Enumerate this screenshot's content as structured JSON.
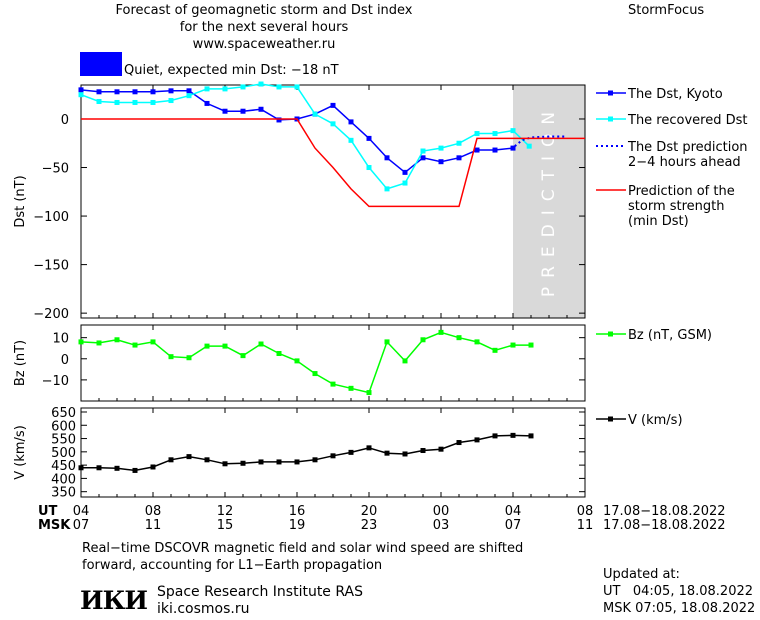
{
  "header": {
    "title_line1": "Forecast of geomagnetic storm and Dst index",
    "title_line2": "for the next several hours",
    "website": "www.spaceweather.ru",
    "brand": "StormFocus",
    "status": "Quiet, expected min Dst: −18 nT",
    "status_color": "#0000ff"
  },
  "prediction_band_text": "PREDICTION",
  "time_axis": {
    "ut_label": "UT",
    "msk_label": "MSK",
    "ut_ticks": [
      "04",
      "08",
      "12",
      "16",
      "20",
      "00",
      "04",
      "08"
    ],
    "msk_ticks": [
      "07",
      "11",
      "15",
      "19",
      "23",
      "03",
      "07",
      "11"
    ],
    "ut_range": "17.08−18.08.2022",
    "msk_range": "17.08−18.08.2022"
  },
  "footer": {
    "note_line1": "Real−time DSCOVR magnetic field and solar wind speed are shifted",
    "note_line2": "forward, accounting for L1−Earth propagation",
    "org_logo_text": "ИКИ",
    "org_name": "Space Research Institute RAS",
    "org_site": "iki.cosmos.ru",
    "updated_label": "Updated at:",
    "updated_ut": "UT   04:05, 18.08.2022",
    "updated_msk": "MSK 07:05, 18.08.2022"
  },
  "chart_data": [
    {
      "type": "line",
      "ylabel": "Dst (nT)",
      "ylim": [
        -205,
        35
      ],
      "xlim": [
        4,
        32
      ],
      "yticks": [
        0,
        -50,
        -100,
        -150,
        -200
      ],
      "prediction_region": [
        28,
        32
      ],
      "legend_placement": "right",
      "series": [
        {
          "name": "The Dst, Kyoto",
          "color": "#0000ff",
          "marker": "square",
          "style": "solid",
          "x": [
            4,
            5,
            6,
            7,
            8,
            9,
            10,
            11,
            12,
            13,
            14,
            15,
            16,
            17,
            18,
            19,
            20,
            21,
            22,
            23,
            24,
            25,
            26,
            27,
            28
          ],
          "y": [
            30,
            28,
            28,
            28,
            28,
            29,
            29,
            16,
            8,
            8,
            10,
            -1,
            0,
            5,
            14,
            -3,
            -20,
            -40,
            -55,
            -40,
            -44,
            -40,
            -32,
            -32,
            -30
          ]
        },
        {
          "name": "The recovered Dst",
          "color": "#00ffff",
          "marker": "square",
          "style": "solid",
          "x": [
            4,
            5,
            6,
            7,
            8,
            9,
            10,
            11,
            12,
            13,
            14,
            15,
            16,
            17,
            18,
            19,
            20,
            21,
            22,
            23,
            24,
            25,
            26,
            27,
            28,
            28.9
          ],
          "y": [
            25,
            18,
            17,
            17,
            17,
            19,
            24,
            31,
            31,
            33,
            36,
            33,
            33,
            5,
            -5,
            -22,
            -50,
            -72,
            -66,
            -33,
            -30,
            -25,
            -15,
            -15,
            -12,
            -28
          ]
        },
        {
          "name": "The Dst prediction 2−4 hours ahead",
          "color": "#0000ff",
          "marker": "none",
          "style": "dotted",
          "x": [
            28.1,
            28.5,
            29,
            30,
            31
          ],
          "y": [
            -28,
            -22,
            -19,
            -18,
            -18
          ]
        },
        {
          "name": "Prediction of the storm strength (min Dst)",
          "color": "#ff0000",
          "marker": "none",
          "style": "solid",
          "x": [
            4,
            16,
            17,
            18,
            19,
            20,
            24,
            25,
            26,
            27,
            28,
            32
          ],
          "y": [
            0,
            0,
            -30,
            -50,
            -72,
            -90,
            -90,
            -90,
            -20,
            -20,
            -20,
            -20
          ]
        }
      ]
    },
    {
      "type": "line",
      "ylabel": "Bz (nT)",
      "ylim": [
        -20,
        16
      ],
      "xlim": [
        4,
        32
      ],
      "yticks": [
        10,
        0,
        -10
      ],
      "legend_placement": "right",
      "series": [
        {
          "name": "Bz (nT, GSM)",
          "color": "#00ff00",
          "marker": "square",
          "style": "solid",
          "x": [
            4,
            5,
            6,
            7,
            8,
            9,
            10,
            11,
            12,
            13,
            14,
            15,
            16,
            17,
            18,
            19,
            20,
            21,
            22,
            23,
            24,
            25,
            26,
            27,
            28,
            29
          ],
          "y": [
            8,
            7.5,
            9,
            6.5,
            8,
            1,
            0.5,
            6,
            6,
            1.5,
            7,
            2.5,
            -1,
            -7,
            -12,
            -14,
            -16,
            8,
            -1,
            9,
            12.5,
            10,
            8,
            4,
            6.5,
            6.5
          ]
        }
      ]
    },
    {
      "type": "line",
      "ylabel": "V (km/s)",
      "ylim": [
        330,
        665
      ],
      "xlim": [
        4,
        32
      ],
      "yticks": [
        350,
        400,
        450,
        500,
        550,
        600,
        650
      ],
      "legend_placement": "right",
      "series": [
        {
          "name": "V (km/s)",
          "color": "#000000",
          "marker": "square",
          "style": "solid",
          "x": [
            4,
            5,
            6,
            7,
            8,
            9,
            10,
            11,
            12,
            13,
            14,
            15,
            16,
            17,
            18,
            19,
            20,
            21,
            22,
            23,
            24,
            25,
            26,
            27,
            28,
            29
          ],
          "y": [
            440,
            440,
            438,
            430,
            443,
            470,
            482,
            470,
            455,
            457,
            462,
            462,
            462,
            470,
            485,
            498,
            515,
            495,
            492,
            505,
            510,
            535,
            545,
            560,
            562,
            560
          ]
        }
      ]
    }
  ]
}
